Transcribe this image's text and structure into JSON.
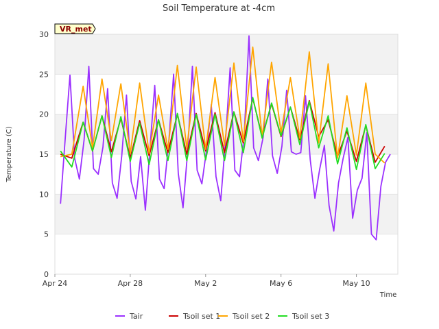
{
  "chart_data": {
    "type": "line",
    "title": "Soil Temperature at -4cm",
    "xlabel": "Time",
    "ylabel": "Temperature (C)",
    "badge": "VR_met",
    "ylim": [
      0,
      30
    ],
    "xlim_days": [
      0,
      18.2
    ],
    "y_ticks": [
      0,
      5,
      10,
      15,
      20,
      25,
      30
    ],
    "x_ticks": [
      {
        "day": 0,
        "label": "Apr 24"
      },
      {
        "day": 4,
        "label": "Apr 28"
      },
      {
        "day": 8,
        "label": "May 2"
      },
      {
        "day": 12,
        "label": "May 6"
      },
      {
        "day": 16,
        "label": "May 10"
      }
    ],
    "grid": "horizontal alternating bands",
    "legend_position": "bottom",
    "series": [
      {
        "name": "Tair",
        "color": "#9b30ff",
        "x": [
          0.3,
          0.55,
          0.8,
          1.05,
          1.3,
          1.55,
          1.8,
          2.05,
          2.3,
          2.55,
          2.8,
          3.05,
          3.3,
          3.55,
          3.8,
          4.05,
          4.3,
          4.55,
          4.8,
          5.05,
          5.3,
          5.55,
          5.8,
          6.05,
          6.3,
          6.55,
          6.8,
          7.05,
          7.3,
          7.55,
          7.8,
          8.05,
          8.3,
          8.55,
          8.8,
          9.05,
          9.3,
          9.55,
          9.8,
          10.05,
          10.3,
          10.55,
          10.8,
          11.05,
          11.3,
          11.55,
          11.8,
          12.05,
          12.3,
          12.55,
          12.8,
          13.05,
          13.3,
          13.55,
          13.8,
          14.05,
          14.3,
          14.55,
          14.8,
          15.05,
          15.3,
          15.55,
          15.8,
          16.05,
          16.3,
          16.55,
          16.8,
          17.05,
          17.3,
          17.55,
          17.8
        ],
        "values": [
          8.8,
          17.0,
          24.9,
          14.5,
          11.9,
          16.8,
          26.0,
          13.2,
          12.5,
          15.9,
          23.2,
          11.4,
          9.5,
          14.8,
          22.4,
          11.6,
          9.4,
          14.7,
          8.0,
          15.8,
          23.6,
          11.9,
          10.7,
          16.7,
          25.0,
          12.6,
          8.3,
          15.5,
          26.0,
          13.0,
          11.3,
          15.6,
          21.2,
          12.2,
          9.2,
          16.5,
          25.8,
          13.0,
          12.2,
          17.5,
          29.8,
          15.8,
          14.2,
          17.1,
          24.4,
          14.8,
          12.6,
          16.0,
          23.0,
          15.3,
          15.0,
          15.2,
          22.3,
          14.3,
          9.5,
          13.1,
          16.1,
          8.6,
          5.4,
          11.4,
          14.5,
          17.1,
          7.0,
          10.5,
          12.0,
          17.7,
          5.0,
          4.3,
          11.0,
          14.0,
          15.0
        ]
      },
      {
        "name": "Tsoil set 1",
        "color": "#cc0000",
        "x": [
          0.3,
          0.9,
          1.5,
          2.0,
          2.5,
          3.0,
          3.5,
          4.0,
          4.5,
          5.0,
          5.5,
          6.0,
          6.5,
          7.0,
          7.5,
          8.0,
          8.5,
          9.0,
          9.5,
          10.0,
          10.5,
          11.0,
          11.5,
          12.0,
          12.5,
          13.0,
          13.5,
          14.0,
          14.5,
          15.0,
          15.5,
          16.0,
          16.5,
          17.0,
          17.5
        ],
        "values": [
          15.0,
          14.5,
          19.0,
          15.4,
          19.8,
          15.3,
          19.5,
          14.5,
          19.2,
          14.8,
          19.3,
          15.2,
          20.0,
          15.0,
          20.1,
          15.4,
          20.2,
          15.2,
          20.3,
          16.4,
          22.0,
          17.2,
          21.3,
          17.2,
          20.9,
          16.8,
          21.7,
          17.2,
          19.3,
          14.7,
          17.9,
          14.1,
          18.6,
          14.0,
          16.0
        ]
      },
      {
        "name": "Tsoil set 2",
        "color": "#ffa500",
        "x": [
          0.3,
          0.9,
          1.5,
          2.0,
          2.5,
          3.0,
          3.5,
          4.0,
          4.5,
          5.0,
          5.5,
          6.0,
          6.5,
          7.0,
          7.5,
          8.0,
          8.5,
          9.0,
          9.5,
          10.0,
          10.5,
          11.0,
          11.5,
          12.0,
          12.5,
          13.0,
          13.5,
          14.0,
          14.5,
          15.0,
          15.5,
          16.0,
          16.5,
          17.0,
          17.5
        ],
        "values": [
          14.7,
          15.0,
          23.5,
          15.8,
          24.4,
          16.7,
          23.8,
          15.1,
          23.9,
          15.1,
          22.4,
          15.6,
          26.1,
          15.7,
          25.9,
          15.6,
          24.6,
          16.1,
          26.4,
          16.6,
          28.4,
          17.2,
          26.5,
          17.7,
          24.6,
          17.0,
          27.8,
          16.4,
          26.3,
          14.5,
          22.3,
          14.9,
          23.9,
          15.0,
          13.9
        ]
      },
      {
        "name": "Tsoil set 3",
        "color": "#22dd22",
        "x": [
          0.3,
          0.9,
          1.5,
          2.0,
          2.5,
          3.0,
          3.5,
          4.0,
          4.5,
          5.0,
          5.5,
          6.0,
          6.5,
          7.0,
          7.5,
          8.0,
          8.5,
          9.0,
          9.5,
          10.0,
          10.5,
          11.0,
          11.5,
          12.0,
          12.5,
          13.0,
          13.5,
          14.0,
          14.5,
          15.0,
          15.5,
          16.0,
          16.5,
          17.0,
          17.5
        ],
        "values": [
          15.4,
          13.4,
          19.0,
          15.4,
          19.8,
          14.6,
          19.7,
          14.1,
          18.9,
          13.7,
          19.3,
          14.2,
          20.1,
          14.2,
          20.0,
          14.3,
          20.0,
          14.2,
          20.3,
          15.2,
          22.1,
          17.0,
          21.4,
          17.3,
          20.9,
          16.2,
          21.6,
          15.8,
          19.8,
          13.8,
          18.3,
          13.1,
          18.7,
          13.2,
          15.1
        ]
      }
    ]
  }
}
